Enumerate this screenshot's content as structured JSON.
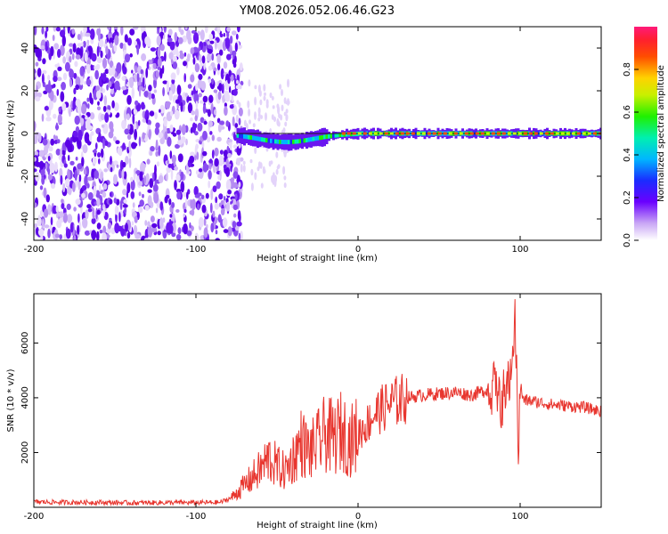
{
  "title": "YM08.2026.052.06.46.G23",
  "colors": {
    "signal": "#e8362f",
    "axis": "#000000",
    "background": "#ffffff"
  },
  "chart_data": [
    {
      "type": "heatmap",
      "xlabel": "Height of straight line (km)",
      "ylabel": "Frequency (Hz)",
      "xlim": [
        -200,
        150
      ],
      "ylim": [
        -50,
        50
      ],
      "xticks": [
        -200,
        -100,
        0,
        100
      ],
      "yticks": [
        -40,
        -20,
        0,
        20,
        40
      ],
      "colorbar": {
        "label": "Normalized spectral amplitude",
        "range": [
          0,
          1
        ],
        "ticks": [
          "0.0",
          "0.2",
          "0.4",
          "0.6",
          "0.8"
        ],
        "tick_values": [
          0.0,
          0.2,
          0.4,
          0.6,
          0.8
        ]
      },
      "description_points": {
        "noise_region_km": [
          -200,
          -75
        ],
        "signal_line_start_km": -75,
        "signal_frequency_hz": 0
      }
    },
    {
      "type": "line",
      "xlabel": "Height of straight line (km)",
      "ylabel": "SNR (10 * v/v)",
      "xlim": [
        -200,
        150
      ],
      "ylim": [
        0,
        7800
      ],
      "xticks": [
        -200,
        -100,
        0,
        100
      ],
      "yticks": [
        2000,
        4000,
        6000
      ],
      "series": [
        {
          "name": "SNR",
          "color": "#e8362f",
          "x": [
            -200,
            -180,
            -160,
            -140,
            -120,
            -100,
            -85,
            -78,
            -72,
            -65,
            -60,
            -55,
            -50,
            -45,
            -40,
            -35,
            -30,
            -25,
            -20,
            -15,
            -10,
            -5,
            0,
            5,
            10,
            20,
            30,
            40,
            50,
            60,
            70,
            80,
            85,
            88,
            92,
            95,
            97,
            99,
            100,
            102,
            105,
            110,
            120,
            130,
            140,
            150
          ],
          "y": [
            200,
            180,
            180,
            160,
            170,
            170,
            180,
            350,
            700,
            1100,
            1400,
            1800,
            1500,
            1300,
            1800,
            2400,
            2000,
            2300,
            2700,
            2500,
            2800,
            2400,
            2700,
            3000,
            3400,
            3800,
            4000,
            4100,
            4150,
            4200,
            4100,
            4300,
            4500,
            3800,
            4200,
            5300,
            6800,
            2000,
            4500,
            3900,
            3900,
            3850,
            3750,
            3700,
            3650,
            3500
          ]
        }
      ]
    }
  ]
}
